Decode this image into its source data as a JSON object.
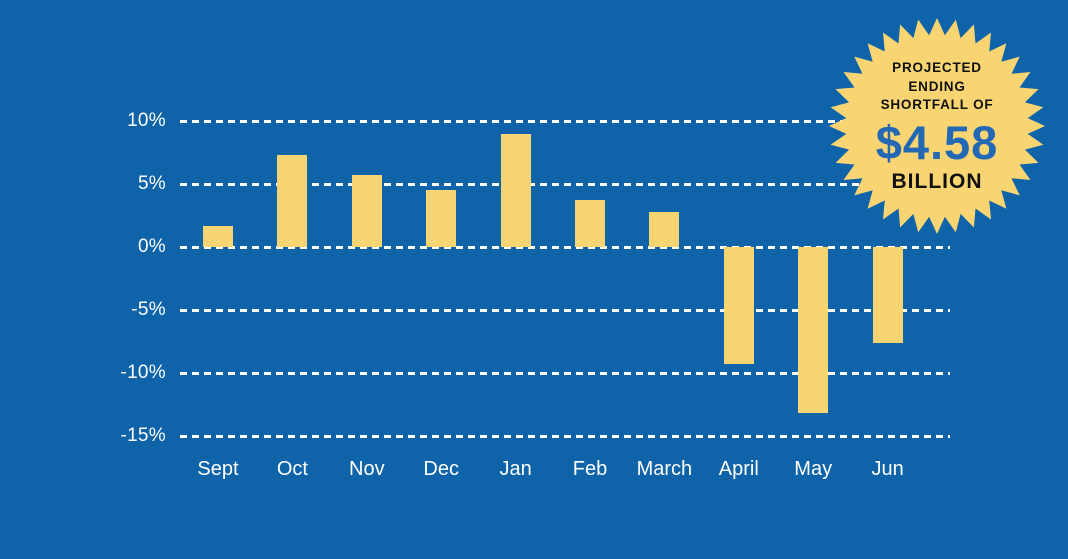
{
  "colors": {
    "background": "#0E63A9",
    "bar": "#F8D572",
    "grid": "#FFFFFF",
    "axis_text": "#FFFFFF",
    "badge_fill": "#F8D572",
    "badge_text": "#111111",
    "badge_amount": "#2268B4"
  },
  "chart_data": {
    "type": "bar",
    "title": "",
    "xlabel": "",
    "ylabel": "",
    "categories": [
      "Sept",
      "Oct",
      "Nov",
      "Dec",
      "Jan",
      "Feb",
      "March",
      "April",
      "May",
      "Jun"
    ],
    "values": [
      1.7,
      7.3,
      5.7,
      4.5,
      9.0,
      3.7,
      2.8,
      -9.3,
      -13.2,
      -7.6
    ],
    "unit": "%",
    "y_ticks": [
      "10%",
      "5%",
      "0%",
      "-5%",
      "-10%",
      "-15%"
    ],
    "y_tick_values": [
      10,
      5,
      0,
      -5,
      -10,
      -15
    ],
    "ylim": [
      -15,
      10
    ],
    "grid": "horizontal dashed white lines",
    "legend": "none"
  },
  "badge": {
    "heading_lines": [
      "PROJECTED",
      "ENDING",
      "SHORTFALL OF"
    ],
    "amount": "$4.58",
    "unit_label": "BILLION"
  }
}
